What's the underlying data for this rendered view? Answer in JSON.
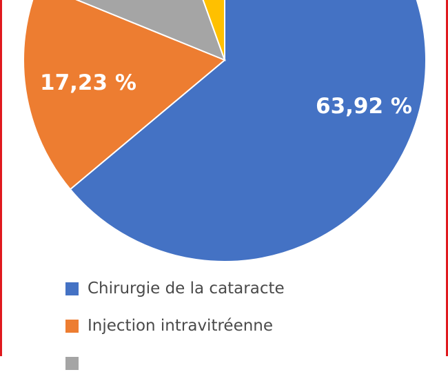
{
  "chart_data": {
    "type": "pie",
    "categories": [
      "Chirurgie de la cataracte",
      "Injection intravitréenne",
      "",
      ""
    ],
    "values": [
      63.92,
      17.23,
      13.35,
      5.5
    ],
    "colors": [
      "#4472c4",
      "#ed7d31",
      "#a5a5a5",
      "#ffc000"
    ],
    "data_labels": [
      "63,92 %",
      "17,23 %",
      "",
      ""
    ],
    "legend": {
      "placement": "bottom-left",
      "entries": [
        {
          "label": "Chirurgie de la cataracte",
          "color": "#4472c4"
        },
        {
          "label": "Injection intravitréenne",
          "color": "#ed7d31"
        },
        {
          "label": "",
          "color": "#a5a5a5"
        }
      ]
    }
  }
}
